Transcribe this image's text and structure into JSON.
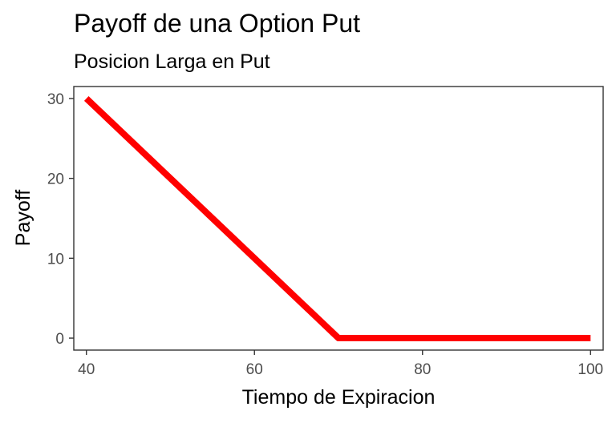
{
  "chart_data": {
    "type": "line",
    "title": "Payoff de una Option Put",
    "subtitle": "Posicion Larga en Put",
    "xlabel": "Tiempo de Expiracion",
    "ylabel": "Payoff",
    "xlim": [
      38.5,
      101.5
    ],
    "ylim": [
      -1.5,
      31.5
    ],
    "x_ticks": [
      40,
      60,
      80,
      100
    ],
    "y_ticks": [
      0,
      10,
      20,
      30
    ],
    "x_tick_labels": [
      "40",
      "60",
      "80",
      "100"
    ],
    "y_tick_labels": [
      "0",
      "10",
      "20",
      "30"
    ],
    "grid": false,
    "legend": "none",
    "series": [
      {
        "color": "#ff0000",
        "x": [
          40,
          70,
          100
        ],
        "y": [
          30,
          0,
          0
        ]
      }
    ]
  }
}
